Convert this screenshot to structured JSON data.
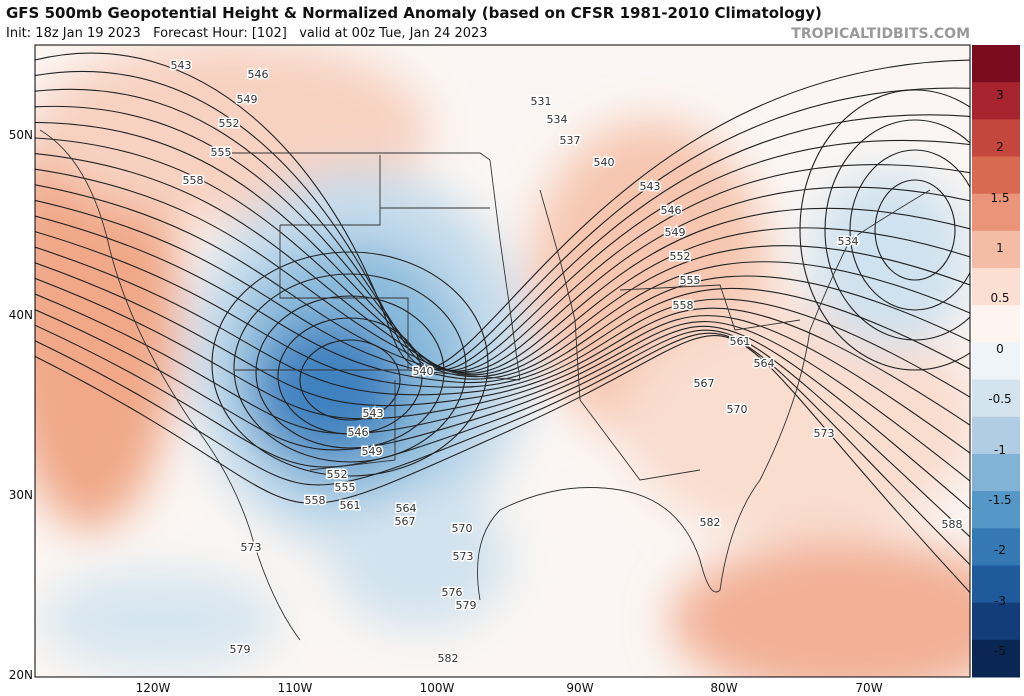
{
  "header": {
    "title": "GFS 500mb Geopotential Height & Normalized Anomaly (based on CFSR 1981-2010 Climatology)",
    "subtitle": "Init: 18z Jan 19 2023   Forecast Hour: [102]   valid at 00z Tue, Jan 24 2023",
    "watermark": "TROPICALTIDBITS.COM"
  },
  "map": {
    "lat_labels": [
      "50N",
      "40N",
      "30N",
      "20N"
    ],
    "lon_labels": [
      "120W",
      "110W",
      "100W",
      "90W",
      "80W",
      "70W"
    ],
    "contour_labels": [
      "543",
      "546",
      "549",
      "552",
      "555",
      "558",
      "531",
      "534",
      "537",
      "540",
      "543",
      "546",
      "549",
      "552",
      "555",
      "558",
      "561",
      "564",
      "567",
      "570",
      "573",
      "534",
      "540",
      "543",
      "546",
      "549",
      "552",
      "555",
      "558",
      "561",
      "564",
      "567",
      "570",
      "573",
      "576",
      "579",
      "582",
      "579",
      "573",
      "582",
      "588"
    ]
  },
  "colorbar": {
    "labels": [
      3,
      2,
      1.5,
      1,
      0.5,
      0,
      -0.5,
      -1,
      -1.5,
      -2,
      -3,
      -5
    ]
  }
}
